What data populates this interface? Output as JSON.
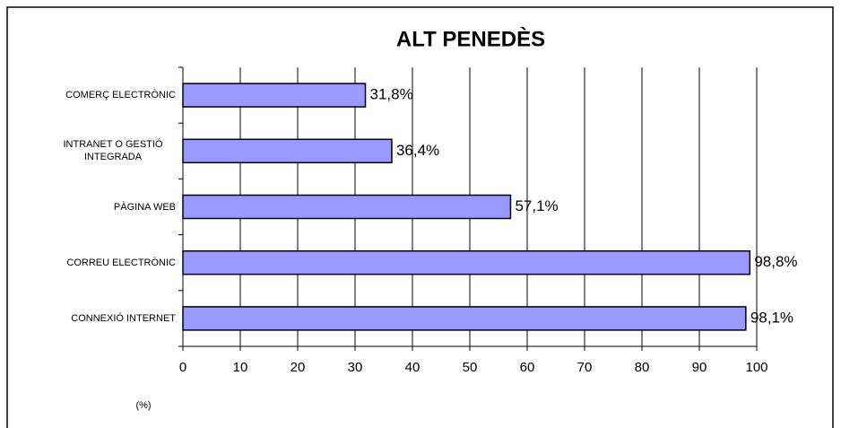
{
  "chart_data": {
    "type": "bar",
    "orientation": "horizontal",
    "title": "ALT PENEDÈS",
    "xlabel": "(%)",
    "categories": [
      "COMERÇ ELECTRÒNIC",
      "INTRANET O GESTIÓ INTEGRADA",
      "PÀGINA WEB",
      "CORREU ELECTRÒNIC",
      "CONNEXIÓ INTERNET"
    ],
    "values": [
      31.8,
      36.4,
      57.1,
      98.8,
      98.1
    ],
    "value_labels": [
      "31,8%",
      "36,4%",
      "57,1%",
      "98,8%",
      "98,1%"
    ],
    "color": "#9999ff",
    "xlim": [
      0,
      100
    ],
    "xticks": [
      0,
      10,
      20,
      30,
      40,
      50,
      60,
      70,
      80,
      90,
      100
    ],
    "grid": true
  }
}
